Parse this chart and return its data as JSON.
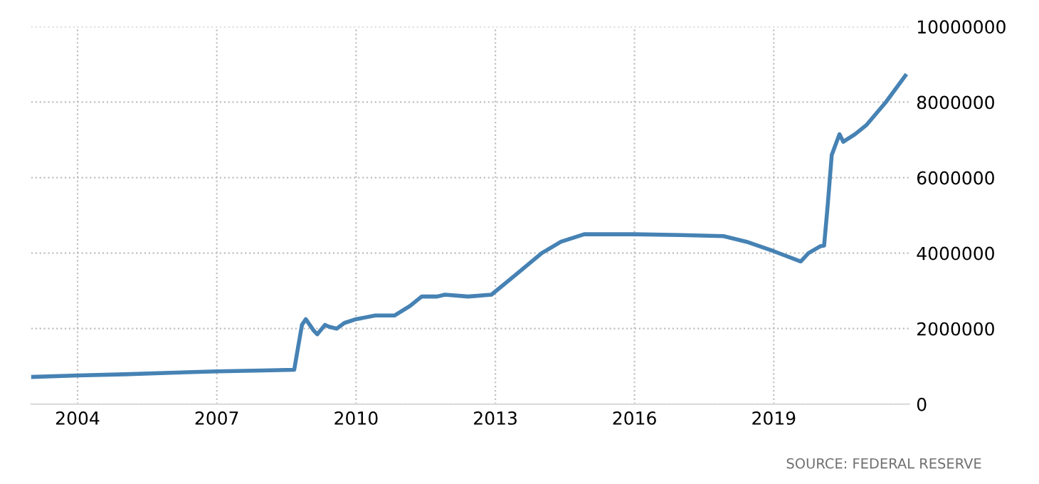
{
  "chart_data": {
    "type": "line",
    "color": "#4682b4",
    "grid": true,
    "line_style": "solid",
    "marker": "none",
    "x": [
      "2003-01",
      "2004-01",
      "2005-01",
      "2006-01",
      "2007-01",
      "2008-01",
      "2008-09",
      "2008-10",
      "2008-11",
      "2008-12",
      "2009-02",
      "2009-03",
      "2009-05",
      "2009-06",
      "2009-08",
      "2009-10",
      "2010-01",
      "2010-06",
      "2010-11",
      "2011-03",
      "2011-06",
      "2011-10",
      "2011-12",
      "2012-06",
      "2012-12",
      "2013-06",
      "2014-01",
      "2014-06",
      "2014-12",
      "2015-06",
      "2016-01",
      "2017-01",
      "2017-12",
      "2018-06",
      "2019-01",
      "2019-08",
      "2019-10",
      "2020-01",
      "2020-02",
      "2020-03",
      "2020-04",
      "2020-06",
      "2020-07",
      "2020-10",
      "2021-01",
      "2021-06",
      "2021-11"
    ],
    "values": [
      720000,
      760000,
      790000,
      830000,
      870000,
      890000,
      910000,
      1500000,
      2100000,
      2250000,
      1950000,
      1850000,
      2100000,
      2050000,
      2000000,
      2150000,
      2250000,
      2350000,
      2350000,
      2600000,
      2850000,
      2850000,
      2900000,
      2850000,
      2900000,
      3400000,
      4000000,
      4300000,
      4500000,
      4500000,
      4500000,
      4480000,
      4450000,
      4300000,
      4050000,
      3780000,
      4000000,
      4180000,
      4200000,
      5300000,
      6600000,
      7150000,
      6950000,
      7150000,
      7400000,
      8000000,
      8700000
    ],
    "xlim": [
      "2003-01",
      "2021-12"
    ],
    "xticks": [
      "2004",
      "2007",
      "2010",
      "2013",
      "2016",
      "2019"
    ],
    "ylim": [
      0,
      10000000
    ],
    "yticks": [
      0,
      2000000,
      4000000,
      6000000,
      8000000,
      10000000
    ],
    "annotations": [
      "SOURCE: FEDERAL RESERVE"
    ]
  }
}
